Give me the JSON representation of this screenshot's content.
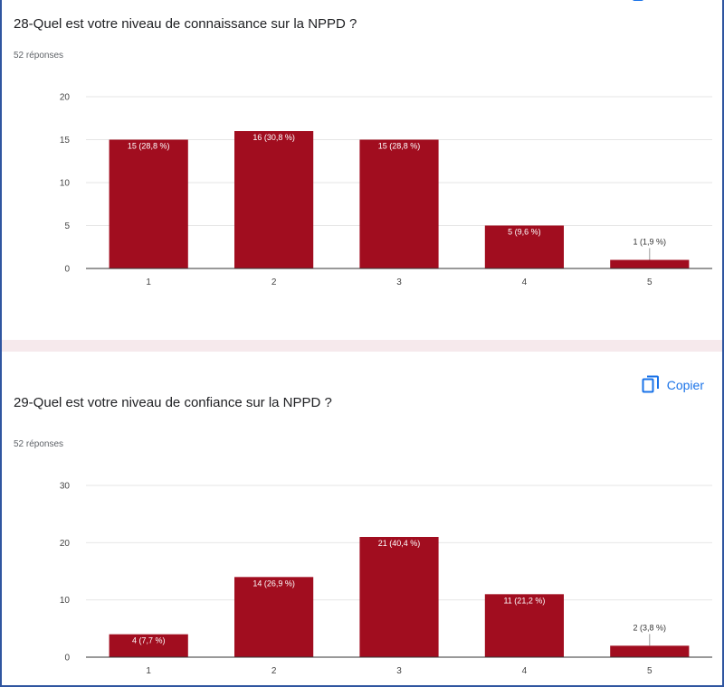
{
  "colors": {
    "bar": "#a10d1f",
    "gridline": "#e6e6e6",
    "axis": "#333333",
    "accent": "#1a73e8"
  },
  "questions": [
    {
      "title": "28-Quel est votre niveau de connaissance sur la NPPD ?",
      "responses": "52 réponses"
    },
    {
      "title": "29-Quel est votre niveau de confiance sur la NPPD ?",
      "responses": "52 réponses",
      "copy_label": "Copier",
      "copy_icon": "copy-icon"
    }
  ],
  "chart_data": [
    {
      "type": "bar",
      "categories": [
        "1",
        "2",
        "3",
        "4",
        "5"
      ],
      "values": [
        15,
        16,
        15,
        5,
        1
      ],
      "data_labels": [
        "15 (28,8 %)",
        "16 (30,8 %)",
        "15 (28,8 %)",
        "5 (9,6 %)",
        "1 (1,9 %)"
      ],
      "ylim": [
        0,
        20
      ],
      "yticks": [
        0,
        5,
        10,
        15,
        20
      ],
      "grid": true,
      "legend": "none"
    },
    {
      "type": "bar",
      "categories": [
        "1",
        "2",
        "3",
        "4",
        "5"
      ],
      "values": [
        4,
        14,
        21,
        11,
        2
      ],
      "data_labels": [
        "4 (7,7 %)",
        "14 (26,9 %)",
        "21 (40,4 %)",
        "11 (21,2 %)",
        "2 (3,8 %)"
      ],
      "ylim": [
        0,
        30
      ],
      "yticks": [
        0,
        10,
        20,
        30
      ],
      "grid": true,
      "legend": "none"
    }
  ]
}
